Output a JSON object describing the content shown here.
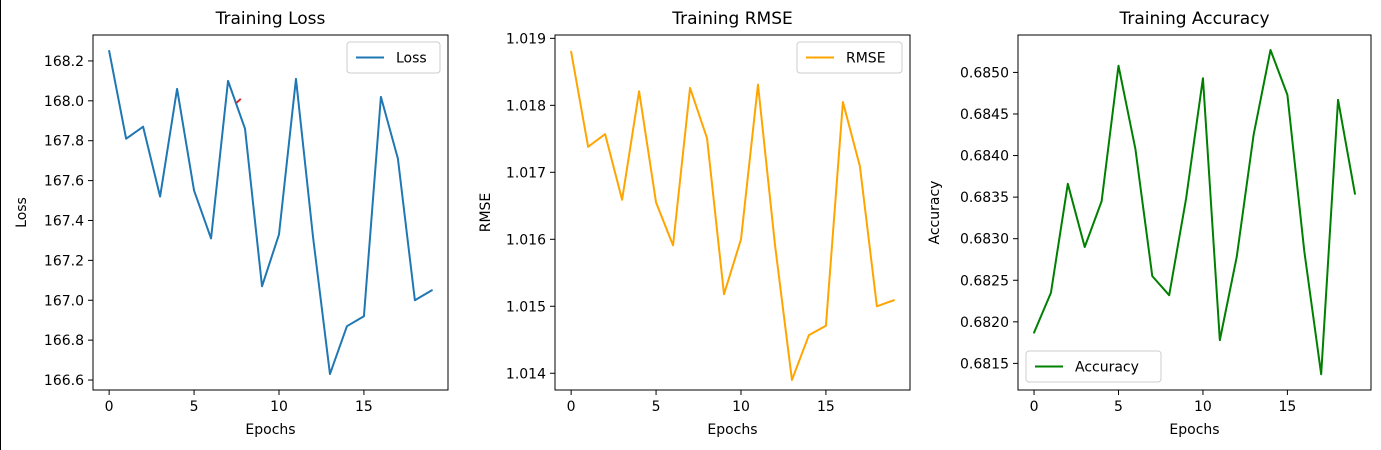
{
  "chart_data": [
    {
      "type": "line",
      "title": "Training Loss",
      "xlabel": "Epochs",
      "ylabel": "Loss",
      "xlim": [
        -0.95,
        19.95
      ],
      "ylim": [
        166.55,
        168.33
      ],
      "xticks": [
        0,
        5,
        10,
        15
      ],
      "xtick_labels": [
        "0",
        "5",
        "10",
        "15"
      ],
      "yticks": [
        166.6,
        166.8,
        167.0,
        167.2,
        167.4,
        167.6,
        167.8,
        168.0,
        168.2
      ],
      "ytick_labels": [
        "166.6",
        "166.8",
        "167.0",
        "167.2",
        "167.4",
        "167.6",
        "167.8",
        "168.0",
        "168.2"
      ],
      "legend": "upper right",
      "grid": false,
      "x": [
        0,
        1,
        2,
        3,
        4,
        5,
        6,
        7,
        8,
        9,
        10,
        11,
        12,
        13,
        14,
        15,
        16,
        17,
        18,
        19
      ],
      "series": [
        {
          "name": "Loss",
          "color": "#1f77b4",
          "values": [
            168.25,
            167.81,
            167.87,
            167.52,
            168.06,
            167.55,
            167.31,
            168.1,
            167.86,
            167.07,
            167.33,
            168.11,
            167.32,
            166.63,
            166.87,
            166.92,
            168.02,
            167.71,
            167.0,
            167.05
          ]
        }
      ],
      "annotation_mark": {
        "color": "#d62728",
        "points": [
          [
            7.5,
            167.99
          ],
          [
            7.75,
            168.01
          ]
        ]
      }
    },
    {
      "type": "line",
      "title": "Training RMSE",
      "xlabel": "Epochs",
      "ylabel": "RMSE",
      "xlim": [
        -0.95,
        19.95
      ],
      "ylim": [
        1.01375,
        1.01905
      ],
      "xticks": [
        0,
        5,
        10,
        15
      ],
      "xtick_labels": [
        "0",
        "5",
        "10",
        "15"
      ],
      "yticks": [
        1.014,
        1.015,
        1.016,
        1.017,
        1.018,
        1.019
      ],
      "ytick_labels": [
        "1.014",
        "1.015",
        "1.016",
        "1.017",
        "1.018",
        "1.019"
      ],
      "legend": "upper right",
      "grid": false,
      "x": [
        0,
        1,
        2,
        3,
        4,
        5,
        6,
        7,
        8,
        9,
        10,
        11,
        12,
        13,
        14,
        15,
        16,
        17,
        18,
        19
      ],
      "series": [
        {
          "name": "RMSE",
          "color": "#ffa500",
          "values": [
            1.0188,
            1.01738,
            1.01757,
            1.01659,
            1.01821,
            1.01655,
            1.01591,
            1.01826,
            1.01751,
            1.01518,
            1.016,
            1.01831,
            1.01592,
            1.0139,
            1.01457,
            1.01471,
            1.01805,
            1.01709,
            1.015,
            1.01509
          ]
        }
      ]
    },
    {
      "type": "line",
      "title": "Training Accuracy",
      "xlabel": "Epochs",
      "ylabel": "Accuracy",
      "xlim": [
        -0.95,
        19.95
      ],
      "ylim": [
        0.68118,
        0.68545
      ],
      "xticks": [
        0,
        5,
        10,
        15
      ],
      "xtick_labels": [
        "0",
        "5",
        "10",
        "15"
      ],
      "yticks": [
        0.6815,
        0.682,
        0.6825,
        0.683,
        0.6835,
        0.684,
        0.6845,
        0.685
      ],
      "ytick_labels": [
        "0.6815",
        "0.6820",
        "0.6825",
        "0.6830",
        "0.6835",
        "0.6840",
        "0.6845",
        "0.6850"
      ],
      "legend": "lower left",
      "grid": false,
      "x": [
        0,
        1,
        2,
        3,
        4,
        5,
        6,
        7,
        8,
        9,
        10,
        11,
        12,
        13,
        14,
        15,
        16,
        17,
        18,
        19
      ],
      "series": [
        {
          "name": "Accuracy",
          "color": "#008000",
          "values": [
            0.68187,
            0.68235,
            0.68366,
            0.6829,
            0.68345,
            0.68508,
            0.68408,
            0.68255,
            0.68232,
            0.68348,
            0.68493,
            0.68178,
            0.68278,
            0.68425,
            0.68527,
            0.68473,
            0.68285,
            0.68137,
            0.68467,
            0.68354
          ]
        }
      ]
    }
  ]
}
